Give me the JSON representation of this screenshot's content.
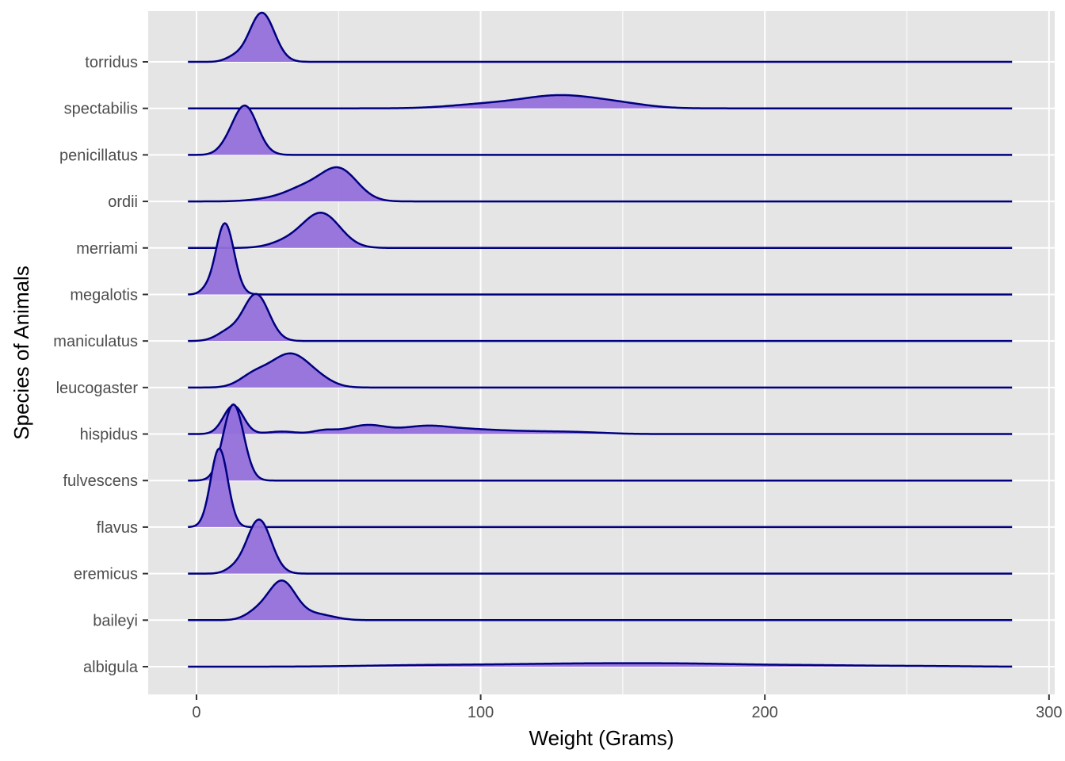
{
  "chart_data": {
    "type": "ridgeline",
    "title": "",
    "xlabel": "Weight (Grams)",
    "ylabel": "Species of Animals",
    "xlim": [
      -17,
      302
    ],
    "x_ticks": [
      0,
      100,
      200,
      300
    ],
    "x_tick_labels": [
      "0",
      "100",
      "200",
      "300"
    ],
    "grid": true,
    "fill_color": "#9370DB",
    "line_color": "#000080",
    "panel_background": "#E5E5E5",
    "species": [
      {
        "name": "torridus",
        "peaks": [
          [
            23,
            4.4,
            1.0
          ],
          [
            13,
            3,
            0.08
          ]
        ]
      },
      {
        "name": "spectabilis",
        "peaks": [
          [
            128,
            14,
            0.26
          ],
          [
            100,
            12,
            0.07
          ],
          [
            150,
            10,
            0.06
          ]
        ]
      },
      {
        "name": "penicillatus",
        "peaks": [
          [
            17,
            4.4,
            1.0
          ],
          [
            10,
            3,
            0.06
          ]
        ]
      },
      {
        "name": "ordii",
        "peaks": [
          [
            50,
            6.5,
            0.66
          ],
          [
            38,
            6,
            0.2
          ],
          [
            30,
            8,
            0.08
          ]
        ]
      },
      {
        "name": "merriami",
        "peaks": [
          [
            44,
            6.5,
            0.7
          ],
          [
            32,
            6,
            0.12
          ]
        ]
      },
      {
        "name": "megalotis",
        "peaks": [
          [
            10,
            3.2,
            1.45
          ],
          [
            3,
            2,
            0.06
          ]
        ]
      },
      {
        "name": "maniculatus",
        "peaks": [
          [
            21,
            4.5,
            0.95
          ],
          [
            11,
            4,
            0.18
          ]
        ]
      },
      {
        "name": "leucogaster",
        "peaks": [
          [
            33,
            7,
            0.68
          ],
          [
            20,
            5,
            0.22
          ],
          [
            44,
            5,
            0.08
          ]
        ]
      },
      {
        "name": "hispidus",
        "peaks": [
          [
            13,
            3.5,
            0.58
          ],
          [
            60,
            7,
            0.18
          ],
          [
            80,
            8,
            0.14
          ],
          [
            95,
            10,
            0.08
          ],
          [
            45,
            4,
            0.07
          ],
          [
            30,
            5,
            0.05
          ],
          [
            115,
            12,
            0.05
          ],
          [
            135,
            10,
            0.03
          ]
        ]
      },
      {
        "name": "fulvescens",
        "peaks": [
          [
            13,
            3.6,
            1.55
          ]
        ]
      },
      {
        "name": "flavus",
        "peaks": [
          [
            8,
            3.0,
            1.6
          ]
        ]
      },
      {
        "name": "eremicus",
        "peaks": [
          [
            22,
            4.3,
            1.1
          ],
          [
            13,
            3,
            0.08
          ]
        ]
      },
      {
        "name": "baileyi",
        "peaks": [
          [
            30,
            4.8,
            0.78
          ],
          [
            21,
            4,
            0.14
          ],
          [
            42,
            6,
            0.12
          ]
        ]
      },
      {
        "name": "albigula",
        "peaks": [
          [
            175,
            22,
            0.05
          ],
          [
            140,
            22,
            0.04
          ],
          [
            110,
            25,
            0.03
          ],
          [
            75,
            20,
            0.02
          ],
          [
            220,
            20,
            0.025
          ],
          [
            258,
            15,
            0.01
          ]
        ]
      }
    ]
  }
}
